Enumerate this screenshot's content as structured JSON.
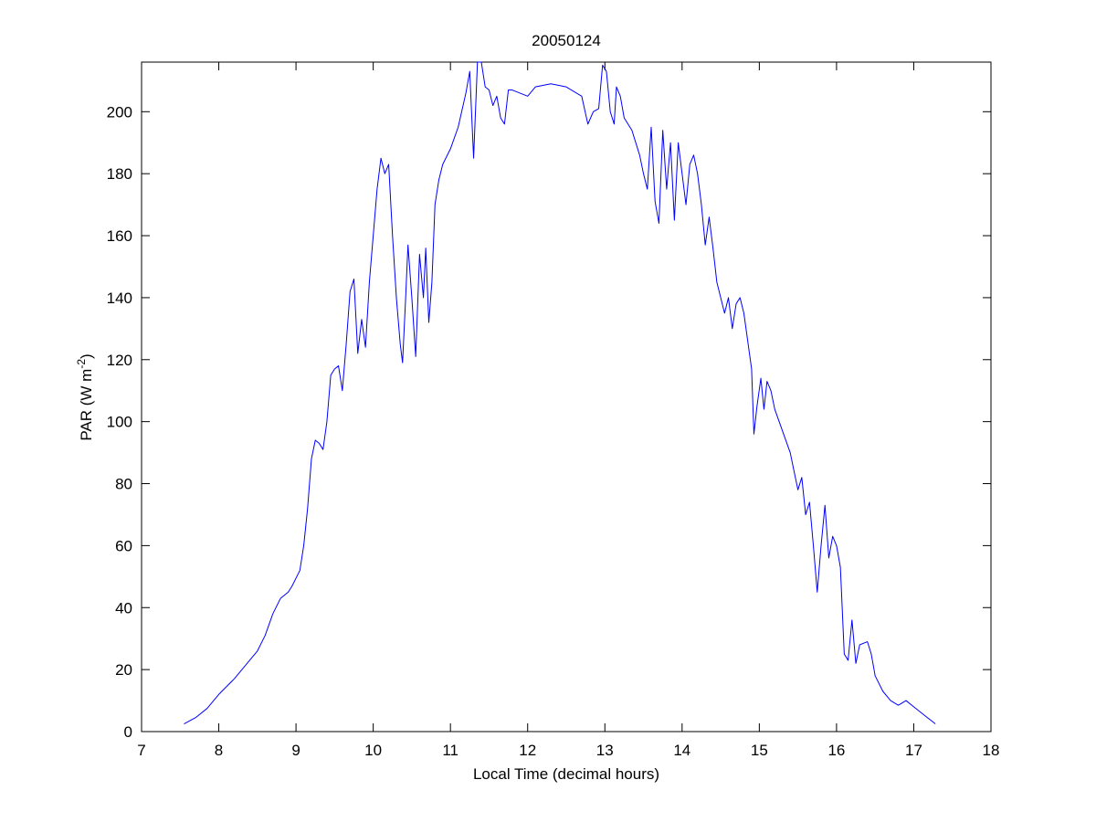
{
  "chart_data": {
    "type": "line",
    "title": "20050124",
    "xlabel": "Local Time (decimal hours)",
    "ylabel": [
      "PAR (W m",
      "-2",
      ")"
    ],
    "color": "#0000ff",
    "xlim": [
      7,
      18
    ],
    "xticks": [
      7,
      8,
      9,
      10,
      11,
      12,
      13,
      14,
      15,
      16,
      17,
      18
    ],
    "ylim": [
      0,
      216
    ],
    "yticks": [
      0,
      20,
      40,
      60,
      80,
      100,
      120,
      140,
      160,
      180,
      200
    ],
    "x": [
      7.55,
      7.7,
      7.85,
      8.0,
      8.2,
      8.4,
      8.5,
      8.6,
      8.7,
      8.8,
      8.9,
      8.95,
      9.05,
      9.1,
      9.15,
      9.2,
      9.25,
      9.3,
      9.35,
      9.4,
      9.45,
      9.5,
      9.55,
      9.6,
      9.65,
      9.7,
      9.75,
      9.8,
      9.85,
      9.9,
      9.95,
      10.0,
      10.05,
      10.1,
      10.15,
      10.2,
      10.25,
      10.3,
      10.35,
      10.38,
      10.42,
      10.45,
      10.5,
      10.55,
      10.6,
      10.65,
      10.68,
      10.72,
      10.76,
      10.8,
      10.85,
      10.9,
      11.0,
      11.1,
      11.2,
      11.25,
      11.3,
      11.35,
      11.4,
      11.45,
      11.5,
      11.55,
      11.6,
      11.65,
      11.7,
      11.75,
      11.8,
      11.9,
      12.0,
      12.1,
      12.3,
      12.5,
      12.7,
      12.78,
      12.85,
      12.92,
      12.97,
      13.02,
      13.07,
      13.12,
      13.15,
      13.2,
      13.25,
      13.3,
      13.35,
      13.45,
      13.5,
      13.55,
      13.6,
      13.65,
      13.7,
      13.75,
      13.8,
      13.85,
      13.9,
      13.95,
      14.0,
      14.05,
      14.1,
      14.15,
      14.2,
      14.25,
      14.3,
      14.35,
      14.4,
      14.45,
      14.5,
      14.55,
      14.6,
      14.65,
      14.7,
      14.75,
      14.8,
      14.85,
      14.9,
      14.93,
      14.97,
      15.02,
      15.06,
      15.1,
      15.15,
      15.2,
      15.3,
      15.4,
      15.5,
      15.55,
      15.6,
      15.65,
      15.7,
      15.75,
      15.8,
      15.85,
      15.9,
      15.95,
      16.0,
      16.05,
      16.1,
      16.15,
      16.2,
      16.25,
      16.3,
      16.4,
      16.45,
      16.5,
      16.6,
      16.7,
      16.8,
      16.9,
      17.0,
      17.1,
      17.28
    ],
    "values": [
      2.5,
      4.5,
      7.5,
      12,
      17,
      23,
      26,
      31,
      38,
      43,
      45,
      47,
      52,
      60,
      72,
      88,
      94,
      93,
      91,
      100,
      115,
      117,
      118,
      110,
      125,
      142,
      146,
      122,
      133,
      124,
      145,
      160,
      175,
      185,
      180,
      183,
      160,
      140,
      125,
      119,
      140,
      157,
      140,
      121,
      154,
      140,
      156,
      132,
      145,
      170,
      178,
      183,
      188,
      195,
      206,
      213,
      185,
      216,
      216,
      208,
      207,
      202,
      205,
      198,
      196,
      207,
      207,
      206,
      205,
      208,
      209,
      208,
      205,
      196,
      200,
      201,
      215,
      213,
      200,
      196,
      208,
      205,
      198,
      196,
      194,
      186,
      180,
      175,
      195,
      171,
      164,
      194,
      175,
      190,
      165,
      190,
      180,
      170,
      183,
      186,
      180,
      170,
      157,
      166,
      156,
      145,
      140,
      135,
      140,
      130,
      138,
      140,
      135,
      126,
      117,
      96,
      105,
      114,
      104,
      113,
      110,
      104,
      97,
      90,
      78,
      82,
      70,
      74,
      60,
      45,
      60,
      73,
      56,
      63,
      60,
      53,
      25,
      23,
      36,
      22,
      28,
      29,
      25,
      18,
      13,
      10,
      8.5,
      10,
      8,
      6,
      2.5
    ]
  }
}
